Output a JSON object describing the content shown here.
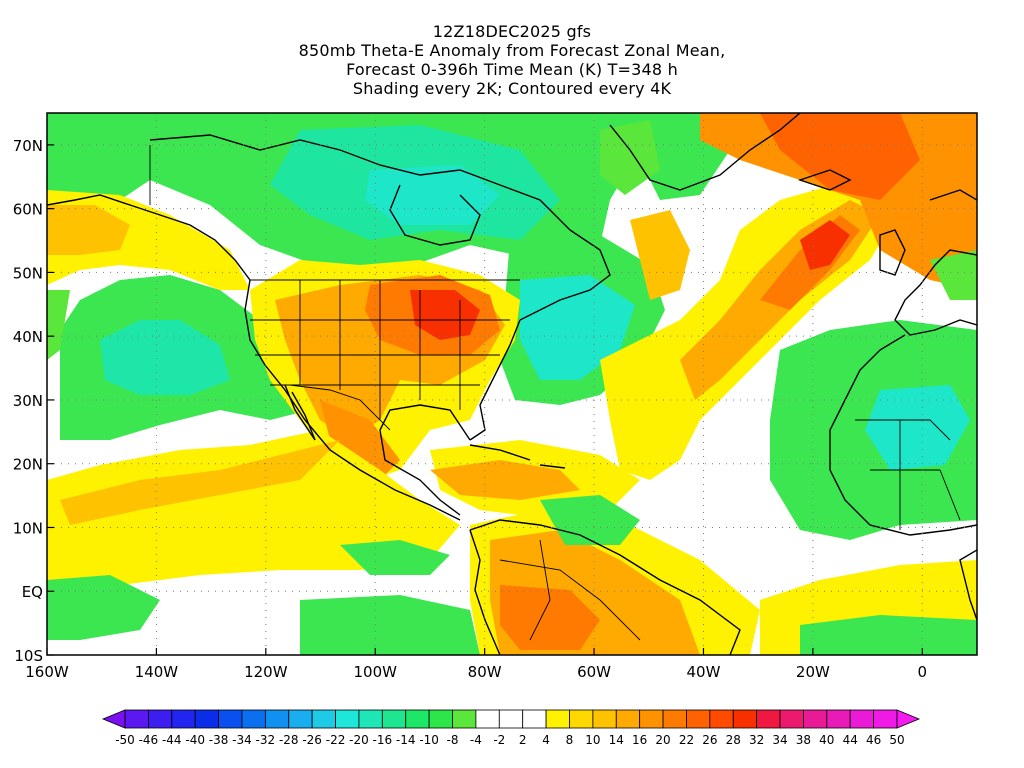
{
  "title": {
    "line1": "12Z18DEC2025 gfs",
    "line2": "850mb Theta-E Anomaly from Forecast Zonal Mean,",
    "line3": "Forecast 0-396h Time Mean (K) T=348 h",
    "line4": "Shading every 2K; Contoured every 4K"
  },
  "map": {
    "lon_range": [
      -160,
      10
    ],
    "lat_range": [
      -10,
      75
    ],
    "lon_ticks": [
      {
        "value": -160,
        "label": "160W"
      },
      {
        "value": -140,
        "label": "140W"
      },
      {
        "value": -120,
        "label": "120W"
      },
      {
        "value": -100,
        "label": "100W"
      },
      {
        "value": -80,
        "label": "80W"
      },
      {
        "value": -60,
        "label": "60W"
      },
      {
        "value": -40,
        "label": "40W"
      },
      {
        "value": -20,
        "label": "20W"
      },
      {
        "value": 0,
        "label": "0"
      }
    ],
    "lat_ticks": [
      {
        "value": 70,
        "label": "70N"
      },
      {
        "value": 60,
        "label": "60N"
      },
      {
        "value": 50,
        "label": "50N"
      },
      {
        "value": 40,
        "label": "40N"
      },
      {
        "value": 30,
        "label": "30N"
      },
      {
        "value": 20,
        "label": "20N"
      },
      {
        "value": 10,
        "label": "10N"
      },
      {
        "value": 0,
        "label": "EQ"
      },
      {
        "value": -10,
        "label": "10S"
      }
    ]
  },
  "colorbar": {
    "labels": [
      "-50",
      "-46",
      "-44",
      "-40",
      "-38",
      "-34",
      "-32",
      "-28",
      "-26",
      "-22",
      "-20",
      "-16",
      "-14",
      "-10",
      "-8",
      "-4",
      "-2",
      "2",
      "4",
      "8",
      "10",
      "14",
      "16",
      "20",
      "22",
      "26",
      "28",
      "32",
      "34",
      "38",
      "40",
      "44",
      "46",
      "50"
    ],
    "colors": [
      "#7a12f0",
      "#5c18f0",
      "#3c1ef0",
      "#2224f0",
      "#0a2ee8",
      "#0a50f0",
      "#0a70f0",
      "#1090f0",
      "#18aef0",
      "#1ecae6",
      "#1ee6d8",
      "#1ee6b6",
      "#1ee690",
      "#1ee666",
      "#2ee64a",
      "#5ae63a",
      "#ffffff",
      "#ffffff",
      "#ffffff",
      "#fff200",
      "#ffd800",
      "#ffc200",
      "#ffaa00",
      "#ff9200",
      "#ff7a00",
      "#ff6200",
      "#ff4a00",
      "#f83000",
      "#f01840",
      "#ec1a6e",
      "#e81a96",
      "#e81ab8",
      "#ea1ad6",
      "#f01ae6",
      "#f41af0"
    ]
  }
}
